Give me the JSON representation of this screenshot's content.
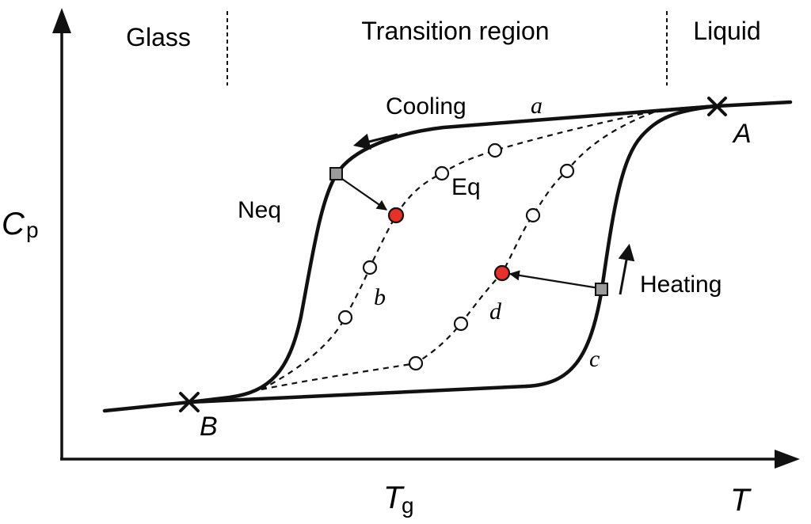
{
  "regions": {
    "glass": "Glass",
    "transition": "Transition region",
    "liquid": "Liquid"
  },
  "axes": {
    "y_main": "C",
    "y_sub": "p",
    "x_main": "T",
    "tg_main": "T",
    "tg_sub": "g"
  },
  "labels": {
    "cooling": "Cooling",
    "heating": "Heating",
    "neq": "Neq",
    "eq": "Eq",
    "point_a": "A",
    "point_b": "B",
    "curve_a": "a",
    "curve_b": "b",
    "curve_c": "c",
    "curve_d": "d"
  },
  "colors": {
    "equilibrium_point": "#e8302a",
    "nonequilibrium_point": "#9a9a9a",
    "line": "#111111"
  }
}
